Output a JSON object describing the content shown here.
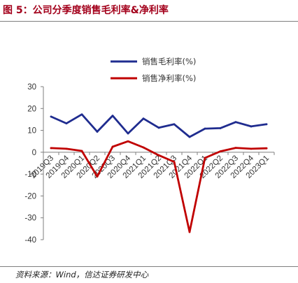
{
  "header": {
    "title": "图 5：公司分季度销售毛利率&净利率"
  },
  "footer": {
    "source": "资料来源：Wind，信达证券研发中心"
  },
  "colors": {
    "gross": "#1f2c8f",
    "net": "#c00000",
    "title": "#a3001b",
    "axis": "#7f7f7f"
  },
  "chart_data": {
    "type": "line",
    "title": "",
    "xlabel": "",
    "ylabel": "",
    "ylim": [
      -40,
      30
    ],
    "yticks": [
      30,
      20,
      10,
      0,
      -10,
      -20,
      -30,
      -40
    ],
    "grid": false,
    "legend_position": "top-right",
    "categories": [
      "2019Q3",
      "2019Q4",
      "2020Q1",
      "2020Q2",
      "2020Q3",
      "2020Q4",
      "2021Q1",
      "2021Q2",
      "2021Q3",
      "2021Q4",
      "2022Q1",
      "2022Q2",
      "2022Q3",
      "2022Q4",
      "2023Q1"
    ],
    "series": [
      {
        "name": "销售毛利率(%)",
        "color": "#1f2c8f",
        "values": [
          16.3,
          13.2,
          17.3,
          9.4,
          16.7,
          8.6,
          15.4,
          11.2,
          12.8,
          7.0,
          10.8,
          11.0,
          13.8,
          11.8,
          12.8
        ]
      },
      {
        "name": "销售净利率(%)",
        "color": "#c00000",
        "values": [
          1.9,
          1.6,
          0.6,
          -11.1,
          2.5,
          5.0,
          2.2,
          -1.4,
          -4.4,
          -36.5,
          -2.6,
          0.4,
          2.0,
          1.6,
          1.8
        ]
      }
    ]
  }
}
